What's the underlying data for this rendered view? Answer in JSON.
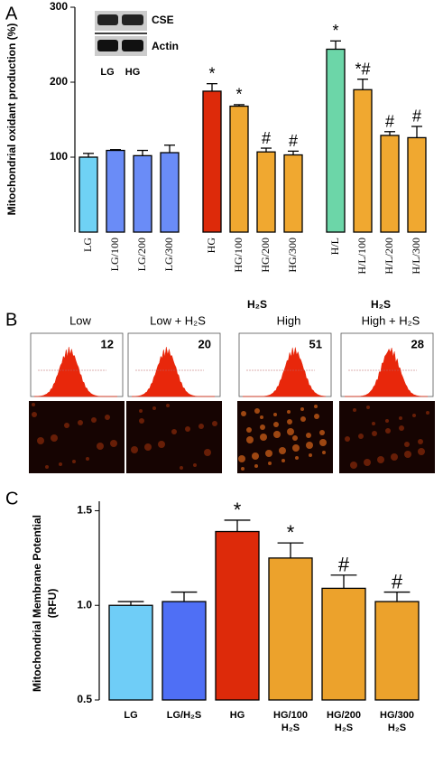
{
  "chart_data": [
    {
      "type": "bar",
      "panel": "A",
      "ylabel": "Mitochondrial oxidant production (%)",
      "ylim": [
        0,
        300
      ],
      "yticks": [
        100,
        200,
        300
      ],
      "categories": [
        "LG",
        "LG/100",
        "LG/200",
        "LG/300",
        "HG",
        "HG/100",
        "HG/200",
        "HG/300",
        "H/L",
        "H/L/100",
        "H/L/200",
        "H/L/300"
      ],
      "values": [
        100,
        109,
        102,
        106,
        188,
        168,
        107,
        103,
        244,
        190,
        129,
        126
      ],
      "errors": [
        5,
        1,
        7,
        10,
        10,
        2,
        5,
        5,
        11,
        14,
        5,
        15
      ],
      "colors": [
        "#6fd2f5",
        "#6a8cf7",
        "#6a8cf7",
        "#6a8cf7",
        "#dd2a0a",
        "#f0a830",
        "#f0a830",
        "#f0a830",
        "#6cd6a8",
        "#f0a830",
        "#f0a830",
        "#f0a830"
      ],
      "annotations": [
        null,
        null,
        null,
        null,
        "*",
        "*",
        "#",
        "#",
        "*",
        "*#",
        "#",
        "#"
      ],
      "group_labels": [
        null,
        "H₂S",
        "H₂S"
      ],
      "inset": {
        "bands": [
          "CSE",
          "Actin"
        ],
        "lanes": [
          "LG",
          "HG"
        ]
      }
    },
    {
      "type": "image",
      "panel": "B",
      "titles": [
        "Low",
        "Low + H₂S",
        "High",
        "High + H₂S"
      ],
      "values": [
        12,
        20,
        51,
        28
      ]
    },
    {
      "type": "bar",
      "panel": "C",
      "ylabel": [
        "Mitochondrial Membrane Potential",
        "(RFU)"
      ],
      "ylim": [
        0.5,
        1.55
      ],
      "yticks": [
        0.5,
        {
          "value": 1,
          "label": "1.0"
        },
        1.5
      ],
      "categories": [
        "LG",
        "LG/H₂S",
        "HG",
        "HG/100",
        "HG/200",
        "HG/300"
      ],
      "sublabels": [
        null,
        null,
        null,
        "H₂S",
        "H₂S",
        "H₂S"
      ],
      "values": [
        1.0,
        1.02,
        1.39,
        1.25,
        1.09,
        1.02
      ],
      "errors": [
        0.02,
        0.05,
        0.06,
        0.08,
        0.07,
        0.05
      ],
      "colors": [
        "#6fcdf7",
        "#4f6ff5",
        "#dd2a0a",
        "#eca22c",
        "#eca22c",
        "#eca22c"
      ],
      "annotations": [
        null,
        null,
        "*",
        "*",
        "#",
        "#"
      ]
    }
  ]
}
